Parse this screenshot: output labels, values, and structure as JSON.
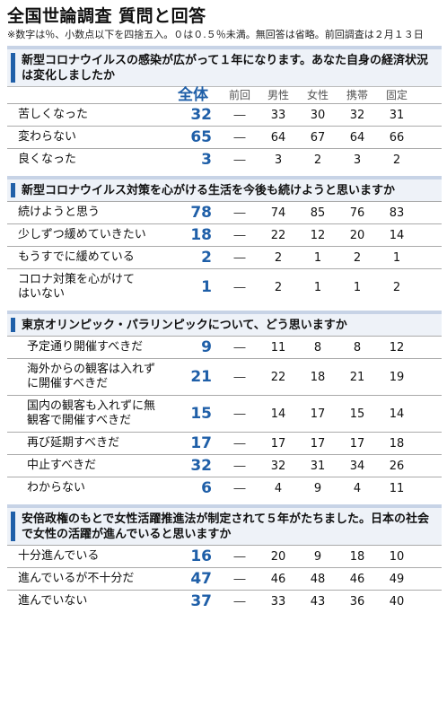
{
  "title": "全国世論調査 質問と回答",
  "note": "※数字は％、小数点以下を四捨五入。０は０.５％未満。無回答は省略。前回調査は２月１３日",
  "headers": {
    "total": "全体",
    "prev": "前回",
    "male": "男性",
    "female": "女性",
    "mobile": "携帯",
    "landline": "固定"
  },
  "sections": [
    {
      "question": "新型コロナウイルスの感染が広がって１年になります。あなた自身の経済状況は変化しましたか",
      "rows": [
        {
          "label": "苦しくなった",
          "total": "32",
          "prev": "―",
          "male": "33",
          "female": "30",
          "mobile": "32",
          "landline": "31"
        },
        {
          "label": "変わらない",
          "total": "65",
          "prev": "―",
          "male": "64",
          "female": "67",
          "mobile": "64",
          "landline": "66"
        },
        {
          "label": "良くなった",
          "total": "3",
          "prev": "―",
          "male": "3",
          "female": "2",
          "mobile": "3",
          "landline": "2"
        }
      ]
    },
    {
      "question": "新型コロナウイルス対策を心がける生活を今後も続けようと思いますか",
      "rows": [
        {
          "label": "続けようと思う",
          "total": "78",
          "prev": "―",
          "male": "74",
          "female": "85",
          "mobile": "76",
          "landline": "83"
        },
        {
          "label": "少しずつ緩めていきたい",
          "total": "18",
          "prev": "―",
          "male": "22",
          "female": "12",
          "mobile": "20",
          "landline": "14"
        },
        {
          "label": "もうすでに緩めている",
          "total": "2",
          "prev": "―",
          "male": "2",
          "female": "1",
          "mobile": "2",
          "landline": "1"
        },
        {
          "label": "コロナ対策を心がけてはいない",
          "total": "1",
          "prev": "―",
          "male": "2",
          "female": "1",
          "mobile": "1",
          "landline": "2"
        }
      ]
    },
    {
      "question": "東京オリンピック・パラリンピックについて、どう思いますか",
      "rows": [
        {
          "label": "予定通り開催すべきだ",
          "total": "9",
          "prev": "―",
          "male": "11",
          "female": "8",
          "mobile": "8",
          "landline": "12"
        },
        {
          "label": "海外からの観客は入れずに開催すべきだ",
          "total": "21",
          "prev": "―",
          "male": "22",
          "female": "18",
          "mobile": "21",
          "landline": "19"
        },
        {
          "label": "国内の観客も入れずに無観客で開催すべきだ",
          "total": "15",
          "prev": "―",
          "male": "14",
          "female": "17",
          "mobile": "15",
          "landline": "14"
        },
        {
          "label": "再び延期すべきだ",
          "total": "17",
          "prev": "―",
          "male": "17",
          "female": "17",
          "mobile": "17",
          "landline": "18"
        },
        {
          "label": "中止すべきだ",
          "total": "32",
          "prev": "―",
          "male": "32",
          "female": "31",
          "mobile": "34",
          "landline": "26"
        },
        {
          "label": "わからない",
          "total": "6",
          "prev": "―",
          "male": "4",
          "female": "9",
          "mobile": "4",
          "landline": "11"
        }
      ]
    },
    {
      "question": "安倍政権のもとで女性活躍推進法が制定されて５年がたちました。日本の社会で女性の活躍が進んでいると思いますか",
      "rows": [
        {
          "label": "十分進んでいる",
          "total": "16",
          "prev": "―",
          "male": "20",
          "female": "9",
          "mobile": "18",
          "landline": "10"
        },
        {
          "label": "進んでいるが不十分だ",
          "total": "47",
          "prev": "―",
          "male": "46",
          "female": "48",
          "mobile": "46",
          "landline": "49"
        },
        {
          "label": "進んでいない",
          "total": "37",
          "prev": "―",
          "male": "33",
          "female": "43",
          "mobile": "36",
          "landline": "40"
        }
      ]
    }
  ]
}
